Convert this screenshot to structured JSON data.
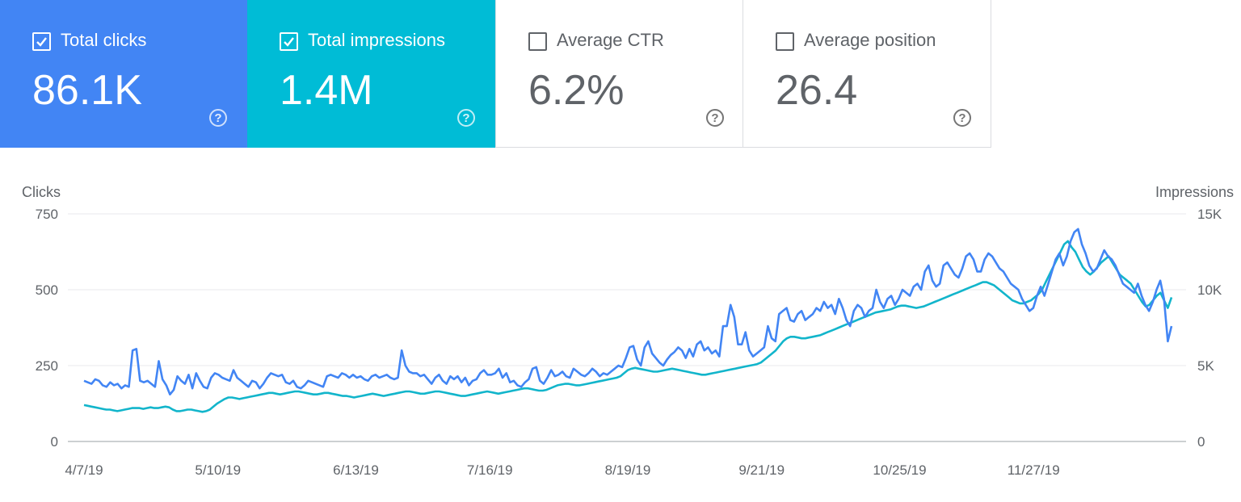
{
  "metrics": [
    {
      "label": "Total clicks",
      "value": "86.1K",
      "selected": true,
      "color": "#4285f4"
    },
    {
      "label": "Total impressions",
      "value": "1.4M",
      "selected": true,
      "color": "#00bcd6"
    },
    {
      "label": "Average CTR",
      "value": "6.2%",
      "selected": false,
      "color": "#ffffff"
    },
    {
      "label": "Average position",
      "value": "26.4",
      "selected": false,
      "color": "#ffffff"
    }
  ],
  "help_glyph": "?",
  "chart_data": {
    "type": "line",
    "y_left_label": "Clicks",
    "y_right_label": "Impressions",
    "y_left_ticks": [
      "0",
      "250",
      "500",
      "750"
    ],
    "y_right_ticks": [
      "0",
      "5K",
      "10K",
      "15K"
    ],
    "y_left_range": [
      0,
      750
    ],
    "y_right_range": [
      0,
      15000
    ],
    "x_tick_labels": [
      "4/7/19",
      "5/10/19",
      "6/13/19",
      "7/16/19",
      "8/19/19",
      "9/21/19",
      "10/25/19",
      "11/27/19"
    ],
    "x_start": "4/7/19",
    "x_end": "12/31/19",
    "grid": true,
    "series": [
      {
        "name": "Total clicks",
        "axis": "left",
        "color": "#4285f4",
        "values": [
          200,
          195,
          190,
          205,
          200,
          185,
          180,
          195,
          185,
          190,
          175,
          185,
          180,
          300,
          305,
          200,
          195,
          200,
          190,
          180,
          265,
          205,
          185,
          155,
          170,
          215,
          200,
          190,
          220,
          175,
          225,
          200,
          180,
          175,
          210,
          225,
          220,
          210,
          205,
          200,
          235,
          210,
          200,
          190,
          180,
          200,
          195,
          175,
          190,
          210,
          225,
          220,
          215,
          220,
          195,
          190,
          200,
          180,
          175,
          185,
          200,
          195,
          190,
          185,
          180,
          215,
          220,
          215,
          210,
          225,
          220,
          210,
          220,
          210,
          215,
          205,
          200,
          215,
          220,
          210,
          215,
          220,
          210,
          205,
          210,
          300,
          250,
          230,
          225,
          225,
          215,
          220,
          205,
          190,
          210,
          220,
          200,
          190,
          215,
          205,
          215,
          195,
          210,
          185,
          200,
          205,
          225,
          235,
          220,
          220,
          225,
          240,
          210,
          225,
          195,
          200,
          185,
          180,
          195,
          205,
          240,
          245,
          200,
          190,
          210,
          235,
          215,
          220,
          230,
          215,
          210,
          240,
          230,
          220,
          215,
          225,
          240,
          230,
          215,
          225,
          220,
          230,
          240,
          250,
          245,
          275,
          310,
          315,
          270,
          250,
          310,
          330,
          290,
          275,
          260,
          250,
          270,
          285,
          295,
          310,
          300,
          275,
          305,
          280,
          320,
          330,
          300,
          310,
          290,
          300,
          280,
          380,
          380,
          450,
          410,
          320,
          320,
          360,
          300,
          280,
          290,
          300,
          310,
          380,
          340,
          330,
          420,
          430,
          440,
          400,
          395,
          420,
          430,
          400,
          410,
          420,
          440,
          430,
          460,
          440,
          450,
          420,
          470,
          440,
          400,
          380,
          430,
          450,
          440,
          410,
          430,
          440,
          500,
          460,
          440,
          470,
          480,
          450,
          470,
          500,
          490,
          480,
          510,
          520,
          500,
          560,
          580,
          530,
          510,
          520,
          580,
          590,
          570,
          550,
          540,
          570,
          610,
          620,
          600,
          560,
          560,
          600,
          620,
          610,
          590,
          570,
          560,
          540,
          520,
          510,
          500,
          470,
          450,
          430,
          440,
          480,
          510,
          480,
          520,
          560,
          600,
          620,
          580,
          610,
          660,
          690,
          700,
          650,
          620,
          580,
          560,
          570,
          600,
          630,
          610,
          600,
          580,
          550,
          520,
          510,
          500,
          490,
          520,
          480,
          450,
          430,
          460,
          500,
          530,
          470,
          330,
          380
        ]
      },
      {
        "name": "Total impressions",
        "axis": "right",
        "color": "#12b5cb",
        "values": [
          2400,
          2350,
          2300,
          2250,
          2200,
          2150,
          2100,
          2100,
          2050,
          2000,
          2050,
          2100,
          2150,
          2200,
          2200,
          2200,
          2150,
          2200,
          2250,
          2200,
          2200,
          2250,
          2300,
          2250,
          2100,
          2000,
          2000,
          2050,
          2100,
          2100,
          2050,
          2000,
          1950,
          2000,
          2100,
          2300,
          2500,
          2650,
          2800,
          2900,
          2900,
          2850,
          2800,
          2850,
          2900,
          2950,
          3000,
          3050,
          3100,
          3150,
          3200,
          3200,
          3150,
          3100,
          3150,
          3200,
          3250,
          3300,
          3300,
          3250,
          3200,
          3150,
          3100,
          3100,
          3150,
          3200,
          3200,
          3150,
          3100,
          3050,
          3000,
          3000,
          2950,
          2900,
          2950,
          3000,
          3050,
          3100,
          3150,
          3100,
          3050,
          3000,
          3050,
          3100,
          3150,
          3200,
          3250,
          3300,
          3300,
          3250,
          3200,
          3150,
          3150,
          3200,
          3250,
          3300,
          3300,
          3250,
          3200,
          3150,
          3100,
          3050,
          3000,
          3000,
          3050,
          3100,
          3150,
          3200,
          3250,
          3300,
          3250,
          3200,
          3150,
          3200,
          3250,
          3300,
          3350,
          3400,
          3450,
          3500,
          3500,
          3450,
          3400,
          3350,
          3350,
          3400,
          3500,
          3600,
          3700,
          3750,
          3800,
          3800,
          3750,
          3700,
          3700,
          3750,
          3800,
          3850,
          3900,
          3950,
          4000,
          4050,
          4100,
          4150,
          4200,
          4300,
          4500,
          4700,
          4800,
          4850,
          4800,
          4750,
          4700,
          4650,
          4600,
          4600,
          4650,
          4700,
          4750,
          4800,
          4750,
          4700,
          4650,
          4600,
          4550,
          4500,
          4450,
          4400,
          4400,
          4450,
          4500,
          4550,
          4600,
          4650,
          4700,
          4750,
          4800,
          4850,
          4900,
          4950,
          5000,
          5050,
          5100,
          5200,
          5400,
          5600,
          5800,
          6000,
          6300,
          6600,
          6800,
          6900,
          6900,
          6850,
          6800,
          6800,
          6850,
          6900,
          6950,
          7000,
          7100,
          7200,
          7300,
          7400,
          7500,
          7600,
          7700,
          7800,
          7900,
          8000,
          8100,
          8200,
          8300,
          8400,
          8500,
          8550,
          8600,
          8650,
          8700,
          8800,
          8900,
          8950,
          8950,
          8900,
          8850,
          8800,
          8850,
          8900,
          9000,
          9100,
          9200,
          9300,
          9400,
          9500,
          9600,
          9700,
          9800,
          9900,
          10000,
          10100,
          10200,
          10300,
          10400,
          10500,
          10500,
          10400,
          10300,
          10100,
          9900,
          9700,
          9500,
          9300,
          9200,
          9100,
          9100,
          9200,
          9300,
          9500,
          9700,
          10000,
          10500,
          11000,
          11500,
          12000,
          12500,
          13000,
          13200,
          12800,
          12500,
          12000,
          11500,
          11200,
          11000,
          11200,
          11500,
          11800,
          12000,
          12200,
          11800,
          11400,
          11000,
          10800,
          10600,
          10400,
          10000,
          9600,
          9200,
          8900,
          9000,
          9300,
          9600,
          9800,
          9300,
          8800,
          9500
        ]
      }
    ]
  }
}
